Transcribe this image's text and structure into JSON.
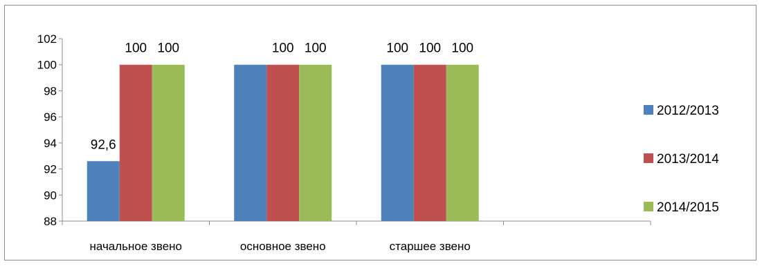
{
  "chart_data": {
    "type": "bar",
    "categories": [
      "начальное звено",
      "основное звено",
      "старшее звено",
      ""
    ],
    "series": [
      {
        "name": "2012/2013",
        "color": "#4F81BD",
        "values": [
          92.6,
          100,
          100,
          null
        ],
        "labels": [
          "92,6",
          "",
          "100",
          null
        ]
      },
      {
        "name": "2013/2014",
        "color": "#C0504D",
        "values": [
          100,
          100,
          100,
          null
        ],
        "labels": [
          "100",
          "100",
          "100",
          null
        ]
      },
      {
        "name": "2014/2015",
        "color": "#9BBB59",
        "values": [
          100,
          100,
          100,
          null
        ],
        "labels": [
          "100",
          "100",
          "100",
          null
        ]
      }
    ],
    "y_ticks": [
      "88",
      "90",
      "92",
      "94",
      "96",
      "98",
      "100",
      "102"
    ],
    "ylim": [
      88,
      102
    ],
    "title": "",
    "xlabel": "",
    "ylabel": "",
    "grid": false,
    "legend_position": "right"
  }
}
